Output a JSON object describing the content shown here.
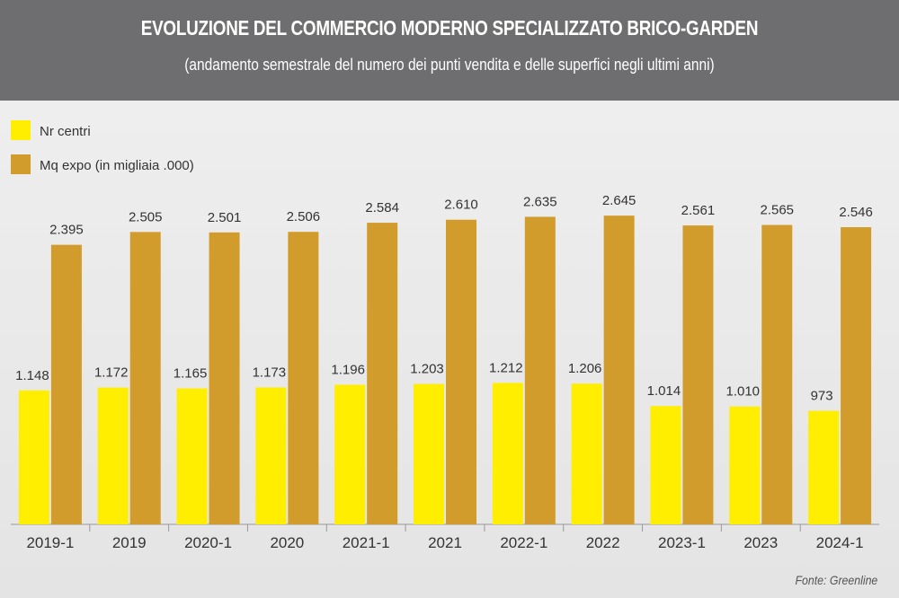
{
  "header": {
    "title": "EVOLUZIONE DEL COMMERCIO MODERNO SPECIALIZZATO BRICO-GARDEN",
    "subtitle": "(andamento semestrale del numero dei punti vendita e delle superfici negli ultimi anni)"
  },
  "source": "Fonte: Greenline",
  "colors": {
    "nr_centri": "#ffee00",
    "mq_expo": "#d19c2b",
    "header_bg": "#6e6e70"
  },
  "chart_data": {
    "type": "bar",
    "categories": [
      "2019-1",
      "2019",
      "2020-1",
      "2020",
      "2021-1",
      "2021",
      "2022-1",
      "2022",
      "2023-1",
      "2023",
      "2024-1"
    ],
    "series": [
      {
        "name": "Nr centri",
        "values": [
          1148,
          1172,
          1165,
          1173,
          1196,
          1203,
          1212,
          1206,
          1014,
          1010,
          973
        ],
        "labels": [
          "1.148",
          "1.172",
          "1.165",
          "1.173",
          "1.196",
          "1.203",
          "1.212",
          "1.206",
          "1.014",
          "1.010",
          "973"
        ]
      },
      {
        "name": "Mq expo (in migliaia .000)",
        "values": [
          2395,
          2505,
          2501,
          2506,
          2584,
          2610,
          2635,
          2645,
          2561,
          2565,
          2546
        ],
        "labels": [
          "2.395",
          "2.505",
          "2.501",
          "2.506",
          "2.584",
          "2.610",
          "2.635",
          "2.645",
          "2.561",
          "2.565",
          "2.546"
        ]
      }
    ],
    "legend_position": "top-left",
    "grid": false
  }
}
